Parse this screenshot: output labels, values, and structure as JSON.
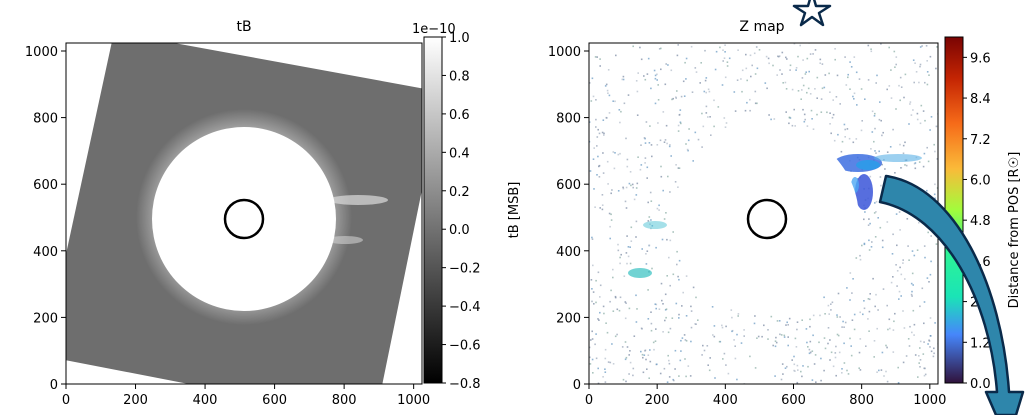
{
  "chart_data": [
    {
      "type": "heatmap",
      "title": "tB",
      "xlim": [
        0,
        1024
      ],
      "ylim": [
        0,
        1024
      ],
      "xticks": [
        "0",
        "200",
        "400",
        "600",
        "800",
        "1000"
      ],
      "yticks": [
        "0",
        "200",
        "400",
        "600",
        "800",
        "1000"
      ],
      "xtick_values": [
        0,
        200,
        400,
        600,
        800,
        1000
      ],
      "ytick_values": [
        0,
        200,
        400,
        600,
        800,
        1000
      ],
      "colormap": "grayscale",
      "colorbar": {
        "label": "tB [MSB]",
        "scale_note": "1e−10",
        "range": [
          -0.8,
          1.0
        ],
        "ticks": [
          "1.0",
          "0.8",
          "0.6",
          "0.4",
          "0.2",
          "0.0",
          "−0.2",
          "−0.4",
          "−0.6",
          "−0.8"
        ],
        "tick_values": [
          1.0,
          0.8,
          0.6,
          0.4,
          0.2,
          0.0,
          -0.2,
          -0.4,
          -0.6,
          -0.8
        ]
      },
      "occulter": {
        "center": [
          512,
          490
        ],
        "radius": 270
      },
      "sun_circle": {
        "center": [
          512,
          490
        ],
        "radius": 55
      }
    },
    {
      "type": "heatmap",
      "title": "Z map",
      "xlim": [
        0,
        1024
      ],
      "ylim": [
        0,
        1024
      ],
      "xticks": [
        "0",
        "200",
        "400",
        "600",
        "800",
        "1000"
      ],
      "yticks": [
        "0",
        "200",
        "400",
        "600",
        "800",
        "1000"
      ],
      "xtick_values": [
        0,
        200,
        400,
        600,
        800,
        1000
      ],
      "ytick_values": [
        0,
        200,
        400,
        600,
        800,
        1000
      ],
      "colormap": "turbo",
      "colorbar": {
        "label": "Distance from POS [R☉]",
        "range": [
          0,
          10.2
        ],
        "ticks": [
          "9.6",
          "8.4",
          "7.2",
          "6.0",
          "4.8",
          "3.6",
          "2.4",
          "1.2",
          "0.0"
        ],
        "tick_values": [
          9.6,
          8.4,
          7.2,
          6.0,
          4.8,
          3.6,
          2.4,
          1.2,
          0.0
        ]
      },
      "occulter": {
        "center": [
          512,
          490
        ],
        "radius": 270
      },
      "sun_circle": {
        "center": [
          512,
          490
        ],
        "radius": 55
      }
    }
  ],
  "colors": {
    "arrow_fill": "#2e86ab",
    "arrow_stroke": "#0a2a4a",
    "star_stroke": "#0a2a4a",
    "panel_gray": "#6e6e6e"
  }
}
